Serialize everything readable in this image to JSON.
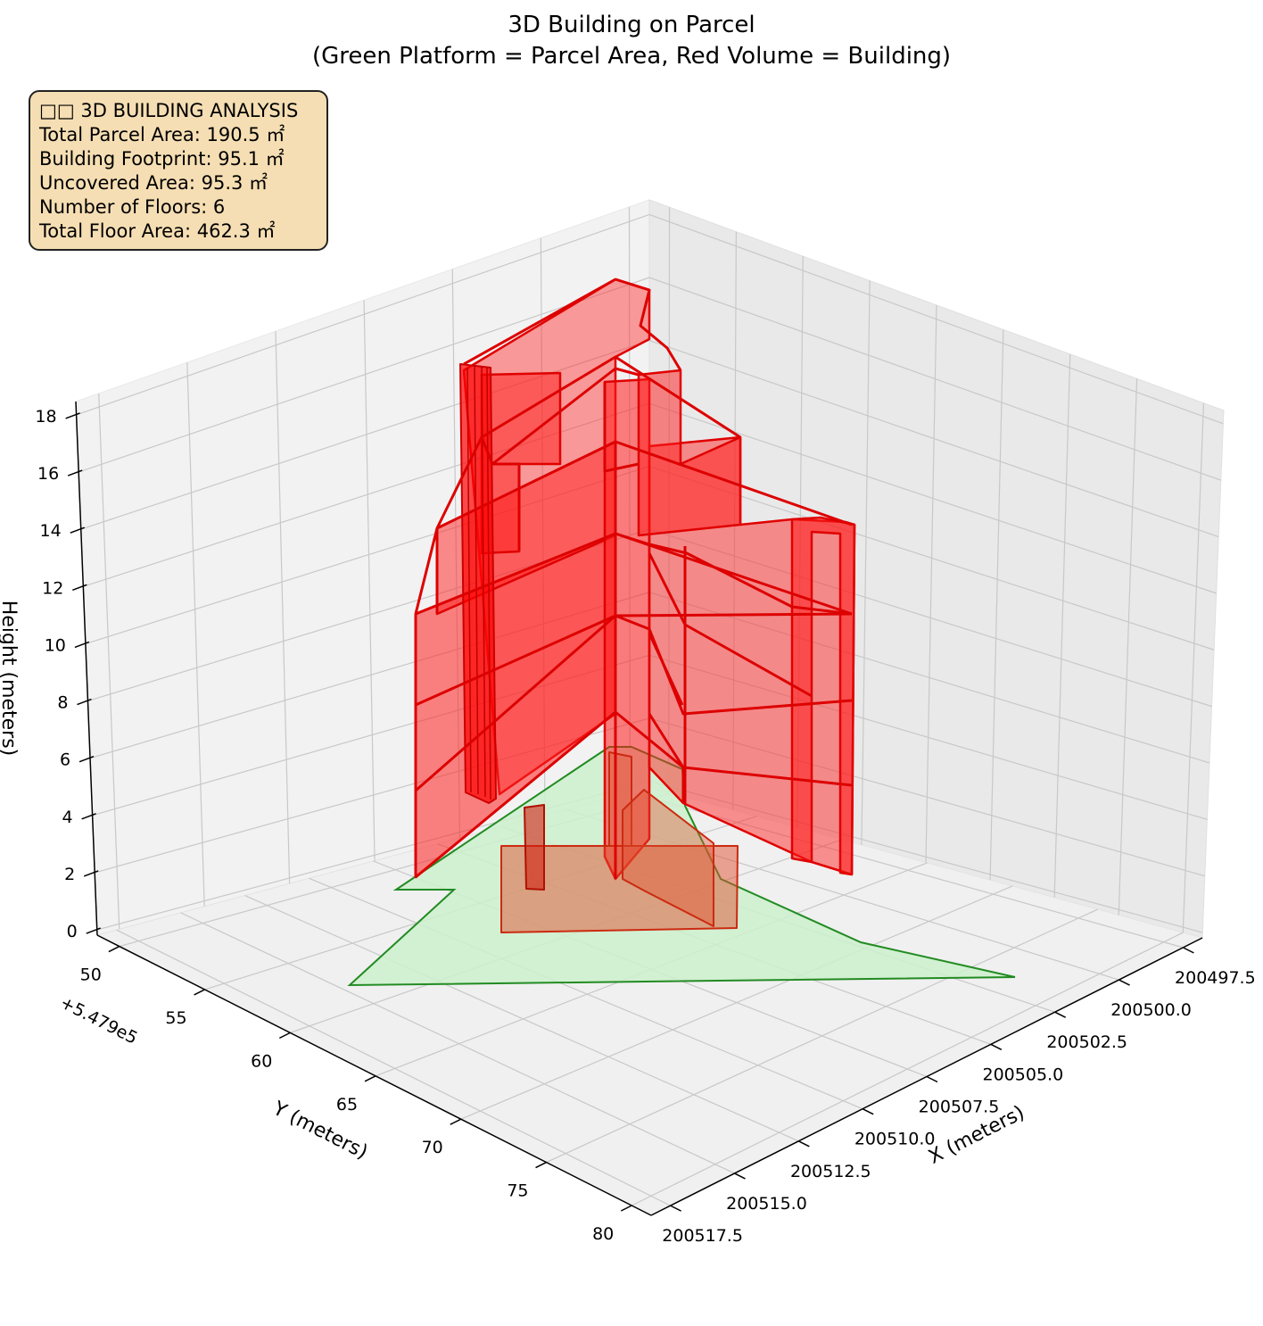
{
  "chart_data": {
    "type": "3d-polygons",
    "title": "3D Building on Parcel",
    "subtitle": "(Green Platform = Parcel Area, Red Volume = Building)",
    "xlabel": "X (meters)",
    "ylabel": "Y (meters)",
    "zlabel": "Height (meters)",
    "y_offset_label": "+5.479e5",
    "x_ticks": [
      "200497.5",
      "200500.0",
      "200502.5",
      "200505.0",
      "200507.5",
      "200510.0",
      "200512.5",
      "200515.0",
      "200517.5"
    ],
    "y_ticks": [
      "50",
      "55",
      "60",
      "65",
      "70",
      "75",
      "80"
    ],
    "z_ticks": [
      "0",
      "2",
      "4",
      "6",
      "8",
      "10",
      "12",
      "14",
      "16",
      "18"
    ],
    "zlim": [
      0,
      18
    ],
    "grid": true,
    "colors": {
      "parcel_fill": "#ccf0cc",
      "parcel_edge": "#228b22",
      "building_fill": "#ff0000",
      "building_edge": "#dd0000",
      "pane": "#f2f2f2",
      "grid": "#c8c8c8"
    },
    "series": [
      {
        "name": "Parcel Area",
        "shape": "platform",
        "z": 0
      },
      {
        "name": "Building",
        "shape": "volume",
        "floors": 6,
        "height": 18
      }
    ]
  },
  "info_box": {
    "line1": "□□ 3D BUILDING ANALYSIS",
    "line2": "Total Parcel Area: 190.5 ㎡",
    "line3": "Building Footprint: 95.1 ㎡",
    "line4": "Uncovered Area: 95.3 ㎡",
    "line5": "Number of Floors: 6",
    "line6": "Total Floor Area: 462.3 ㎡"
  }
}
